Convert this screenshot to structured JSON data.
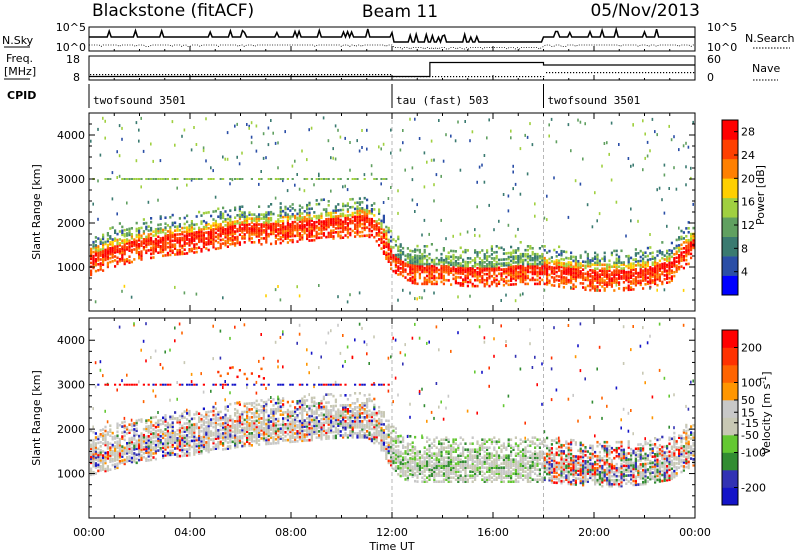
{
  "header": {
    "station": "Blackstone (fitACF)",
    "beam": "Beam 11",
    "date": "05/Nov/2013"
  },
  "top_panel_labels": {
    "nsky": "N.Sky",
    "nsearch": "N.Search",
    "freq_line1": "Freq.",
    "freq_line2": "[MHz]",
    "nave": "Nave",
    "cpid": "CPID",
    "nsky_ticks": [
      "10^5",
      "10^0"
    ],
    "nsearch_ticks": [
      "10^5",
      "10^0"
    ],
    "freq_ticks": [
      "18",
      "8"
    ],
    "nave_ticks": [
      "60",
      "0"
    ]
  },
  "cpid_segments": [
    {
      "label": "twofsound 3501",
      "start_hour": 0,
      "end_hour": 12
    },
    {
      "label": "tau (fast) 503",
      "start_hour": 12,
      "end_hour": 18
    },
    {
      "label": "twofsound 3501",
      "start_hour": 18,
      "end_hour": 24
    }
  ],
  "x_axis": {
    "label": "Time UT",
    "tick_labels": [
      "00:00",
      "04:00",
      "08:00",
      "12:00",
      "16:00",
      "20:00",
      "00:00"
    ],
    "range_hours": [
      0,
      24
    ]
  },
  "colors": {
    "power": [
      "#0000ff",
      "#2a4ea6",
      "#3a7a70",
      "#60a060",
      "#a0d040",
      "#ffd000",
      "#ff8000",
      "#ff4000",
      "#ff0000"
    ],
    "velocity": [
      "#1414c8",
      "#3232b4",
      "#328c32",
      "#64c832",
      "#c8c8b4",
      "#c8c8c8",
      "#ff9600",
      "#ff6400",
      "#ff3200",
      "#ff0000"
    ]
  },
  "chart_data": [
    {
      "type": "heatmap",
      "panel": "power",
      "ylabel": "Slant Range [km]",
      "xlabel": "Time UT",
      "xlim_hours": [
        0,
        24
      ],
      "ylim": [
        0,
        4500
      ],
      "y_ticks": [
        1000,
        2000,
        3000,
        4000
      ],
      "colorbar_label": "Power [dB]",
      "colorbar_ticks": [
        4,
        8,
        12,
        16,
        20,
        24,
        28
      ],
      "colorbar_range": [
        0,
        30
      ],
      "main_band_center_km": {
        "hours": [
          0,
          1,
          2,
          3,
          4,
          5,
          6,
          7,
          8,
          9,
          10,
          11,
          11.5,
          12,
          12.5,
          13,
          14,
          15,
          16,
          17,
          18,
          19,
          20,
          21,
          22,
          23,
          23.5,
          24
        ],
        "values": [
          1150,
          1350,
          1500,
          1600,
          1650,
          1750,
          1850,
          1850,
          1900,
          1950,
          2000,
          2050,
          1800,
          1200,
          1000,
          950,
          950,
          900,
          900,
          950,
          950,
          850,
          800,
          800,
          850,
          1000,
          1300,
          1550
        ]
      }
    },
    {
      "type": "heatmap",
      "panel": "velocity",
      "ylabel": "Slant Range [km]",
      "xlabel": "Time UT",
      "xlim_hours": [
        0,
        24
      ],
      "ylim": [
        0,
        4500
      ],
      "y_ticks": [
        1000,
        2000,
        3000,
        4000
      ],
      "colorbar_label": "Velocity [m s^-1]",
      "colorbar_ticks": [
        200,
        100,
        50,
        15,
        -15,
        -50,
        -100,
        -200
      ],
      "colorbar_range": [
        -250,
        250
      ],
      "main_band_center_km": {
        "hours": [
          0,
          1,
          2,
          3,
          4,
          5,
          6,
          7,
          8,
          9,
          10,
          11,
          11.5,
          12,
          12.5,
          13,
          14,
          15,
          16,
          17,
          18,
          19,
          20,
          21,
          22,
          23,
          23.5,
          24
        ],
        "values": [
          1300,
          1450,
          1600,
          1700,
          1750,
          1850,
          1950,
          2000,
          2050,
          2100,
          2150,
          2150,
          1900,
          1400,
          1200,
          1150,
          1150,
          1150,
          1150,
          1150,
          1150,
          1100,
          1050,
          1050,
          1100,
          1200,
          1400,
          1550
        ]
      }
    }
  ]
}
